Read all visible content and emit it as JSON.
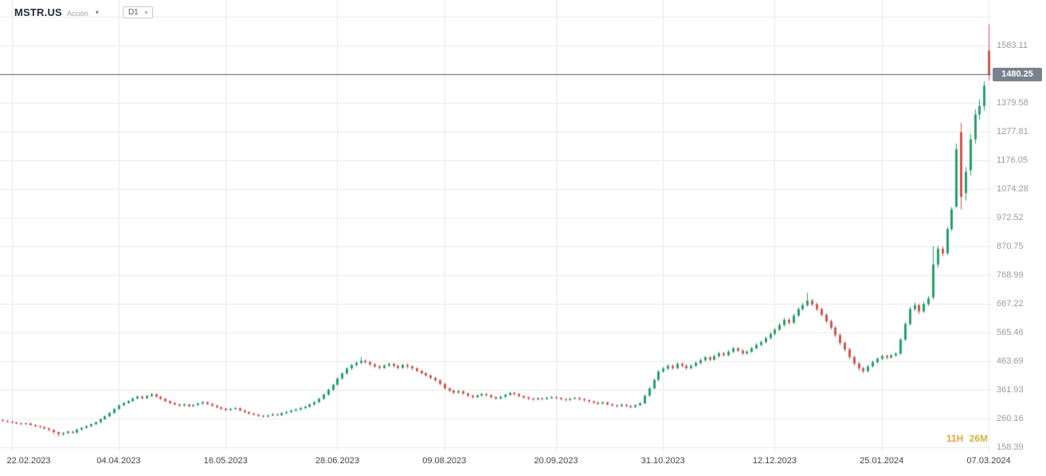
{
  "header": {
    "symbol": "MSTR.US",
    "instrument_type": "Acción",
    "timeframe": "D1"
  },
  "current_price": {
    "value": 1480.25,
    "label": "1480.25"
  },
  "countdown": {
    "hours": "11H",
    "minutes": "26M"
  },
  "colors": {
    "up": "#26a06a",
    "down": "#d5544e",
    "grid": "#e9e9e9",
    "price_line": "#565b61",
    "badge_bg": "#78828c",
    "badge_text": "#ffffff",
    "countdown_hours": "#f0a13b",
    "countdown_minutes": "#cdb83f",
    "price_label": "#9b9b9b",
    "date_label": "#3f4348"
  },
  "chart_data": {
    "type": "candlestick",
    "title": "MSTR.US daily candlestick chart",
    "symbol": "MSTR.US",
    "timeframe": "D1",
    "ylim": [
      144,
      1744
    ],
    "grid": true,
    "price_ticks": [
      {
        "price": 1684.88,
        "label": ""
      },
      {
        "price": 1583.11,
        "label": "1583.11"
      },
      {
        "price": 1481.34,
        "label": ""
      },
      {
        "price": 1379.58,
        "label": "1379.58"
      },
      {
        "price": 1277.81,
        "label": "1277.81"
      },
      {
        "price": 1176.05,
        "label": "1176.05"
      },
      {
        "price": 1074.28,
        "label": "1074.28"
      },
      {
        "price": 972.52,
        "label": "972.52"
      },
      {
        "price": 870.75,
        "label": "870.75"
      },
      {
        "price": 768.99,
        "label": "768.99"
      },
      {
        "price": 667.22,
        "label": "667.22"
      },
      {
        "price": 565.46,
        "label": "565.46"
      },
      {
        "price": 463.69,
        "label": "463.69"
      },
      {
        "price": 361.93,
        "label": "361.93"
      },
      {
        "price": 260.16,
        "label": "260.16"
      },
      {
        "price": 158.39,
        "label": "158.39"
      }
    ],
    "date_ticks": [
      {
        "idx": 2,
        "label": "22.02.2023"
      },
      {
        "idx": 25,
        "label": "04.04.2023"
      },
      {
        "idx": 48,
        "label": "16.05.2023"
      },
      {
        "idx": 72,
        "label": "28.06.2023"
      },
      {
        "idx": 95,
        "label": "09.08.2023"
      },
      {
        "idx": 119,
        "label": "20.09.2023"
      },
      {
        "idx": 142,
        "label": "31.10.2023"
      },
      {
        "idx": 166,
        "label": "12.12.2023"
      },
      {
        "idx": 189,
        "label": "25.01.2024"
      },
      {
        "idx": 212,
        "label": "07.03.2024"
      }
    ],
    "candles": [
      [
        255,
        257,
        249,
        252
      ],
      [
        252,
        255,
        246,
        249
      ],
      [
        249,
        252,
        242,
        246
      ],
      [
        246,
        249,
        240,
        243
      ],
      [
        243,
        247,
        237,
        240
      ],
      [
        240,
        246,
        238,
        243
      ],
      [
        243,
        245,
        234,
        237
      ],
      [
        237,
        240,
        230,
        233
      ],
      [
        233,
        236,
        226,
        230
      ],
      [
        230,
        233,
        221,
        225
      ],
      [
        225,
        228,
        215,
        220
      ],
      [
        220,
        222,
        207,
        212
      ],
      [
        212,
        214,
        196,
        205
      ],
      [
        205,
        212,
        199,
        209
      ],
      [
        209,
        217,
        205,
        214
      ],
      [
        214,
        216,
        206,
        210
      ],
      [
        210,
        224,
        208,
        221
      ],
      [
        221,
        230,
        218,
        227
      ],
      [
        227,
        236,
        224,
        233
      ],
      [
        233,
        243,
        230,
        240
      ],
      [
        240,
        250,
        237,
        247
      ],
      [
        247,
        261,
        244,
        258
      ],
      [
        258,
        271,
        255,
        268
      ],
      [
        268,
        283,
        265,
        280
      ],
      [
        280,
        297,
        277,
        294
      ],
      [
        294,
        310,
        291,
        307
      ],
      [
        307,
        319,
        304,
        315
      ],
      [
        315,
        326,
        312,
        322
      ],
      [
        322,
        335,
        319,
        331
      ],
      [
        331,
        342,
        328,
        338
      ],
      [
        338,
        341,
        328,
        332
      ],
      [
        332,
        344,
        329,
        340
      ],
      [
        340,
        351,
        337,
        346
      ],
      [
        346,
        349,
        334,
        338
      ],
      [
        338,
        341,
        326,
        330
      ],
      [
        330,
        333,
        318,
        322
      ],
      [
        322,
        325,
        311,
        315
      ],
      [
        315,
        318,
        306,
        310
      ],
      [
        310,
        313,
        302,
        306
      ],
      [
        306,
        314,
        303,
        310
      ],
      [
        310,
        312,
        300,
        304
      ],
      [
        304,
        312,
        301,
        308
      ],
      [
        308,
        317,
        305,
        313
      ],
      [
        313,
        322,
        310,
        318
      ],
      [
        318,
        321,
        308,
        312
      ],
      [
        312,
        315,
        302,
        306
      ],
      [
        306,
        309,
        296,
        300
      ],
      [
        300,
        303,
        291,
        295
      ],
      [
        295,
        298,
        286,
        290
      ],
      [
        290,
        298,
        287,
        294
      ],
      [
        294,
        301,
        291,
        297
      ],
      [
        297,
        300,
        285,
        289
      ],
      [
        289,
        292,
        279,
        283
      ],
      [
        283,
        286,
        274,
        278
      ],
      [
        278,
        281,
        270,
        274
      ],
      [
        274,
        277,
        266,
        270
      ],
      [
        270,
        273,
        263,
        267
      ],
      [
        267,
        275,
        264,
        271
      ],
      [
        271,
        279,
        268,
        275
      ],
      [
        275,
        278,
        268,
        272
      ],
      [
        272,
        283,
        269,
        279
      ],
      [
        279,
        287,
        276,
        283
      ],
      [
        283,
        292,
        280,
        288
      ],
      [
        288,
        296,
        285,
        292
      ],
      [
        292,
        301,
        289,
        297
      ],
      [
        297,
        306,
        294,
        302
      ],
      [
        302,
        314,
        298,
        310
      ],
      [
        310,
        322,
        306,
        318
      ],
      [
        318,
        334,
        315,
        330
      ],
      [
        330,
        349,
        327,
        345
      ],
      [
        345,
        366,
        341,
        362
      ],
      [
        362,
        384,
        358,
        380
      ],
      [
        380,
        406,
        376,
        402
      ],
      [
        402,
        424,
        397,
        420
      ],
      [
        420,
        442,
        415,
        438
      ],
      [
        438,
        454,
        432,
        450
      ],
      [
        450,
        463,
        444,
        458
      ],
      [
        458,
        478,
        452,
        465
      ],
      [
        465,
        470,
        454,
        460
      ],
      [
        460,
        465,
        446,
        452
      ],
      [
        452,
        457,
        439,
        445
      ],
      [
        445,
        450,
        434,
        440
      ],
      [
        440,
        452,
        436,
        448
      ],
      [
        448,
        459,
        443,
        454
      ],
      [
        454,
        458,
        441,
        447
      ],
      [
        447,
        451,
        434,
        440
      ],
      [
        440,
        454,
        436,
        450
      ],
      [
        450,
        455,
        438,
        445
      ],
      [
        445,
        449,
        431,
        438
      ],
      [
        438,
        442,
        424,
        429
      ],
      [
        429,
        433,
        416,
        421
      ],
      [
        421,
        425,
        408,
        413
      ],
      [
        413,
        417,
        399,
        404
      ],
      [
        404,
        408,
        390,
        396
      ],
      [
        396,
        399,
        378,
        383
      ],
      [
        383,
        386,
        362,
        367
      ],
      [
        367,
        371,
        354,
        359
      ],
      [
        359,
        363,
        347,
        352
      ],
      [
        352,
        362,
        349,
        357
      ],
      [
        357,
        360,
        344,
        349
      ],
      [
        349,
        352,
        336,
        341
      ],
      [
        341,
        345,
        331,
        336
      ],
      [
        336,
        346,
        333,
        342
      ],
      [
        342,
        351,
        338,
        347
      ],
      [
        347,
        350,
        338,
        343
      ],
      [
        343,
        346,
        331,
        336
      ],
      [
        336,
        339,
        326,
        331
      ],
      [
        331,
        341,
        328,
        337
      ],
      [
        337,
        348,
        334,
        344
      ],
      [
        344,
        355,
        341,
        351
      ],
      [
        351,
        354,
        342,
        347
      ],
      [
        347,
        350,
        335,
        340
      ],
      [
        340,
        343,
        330,
        335
      ],
      [
        335,
        338,
        326,
        331
      ],
      [
        331,
        334,
        323,
        328
      ],
      [
        328,
        336,
        325,
        332
      ],
      [
        332,
        335,
        324,
        329
      ],
      [
        329,
        337,
        326,
        333
      ],
      [
        333,
        340,
        330,
        336
      ],
      [
        336,
        339,
        328,
        333
      ],
      [
        333,
        336,
        324,
        329
      ],
      [
        329,
        332,
        321,
        326
      ],
      [
        326,
        334,
        323,
        330
      ],
      [
        330,
        337,
        327,
        333
      ],
      [
        333,
        336,
        324,
        329
      ],
      [
        329,
        332,
        320,
        325
      ],
      [
        325,
        328,
        316,
        321
      ],
      [
        321,
        324,
        312,
        317
      ],
      [
        317,
        320,
        308,
        313
      ],
      [
        313,
        321,
        310,
        317
      ],
      [
        317,
        320,
        306,
        311
      ],
      [
        311,
        314,
        302,
        307
      ],
      [
        307,
        310,
        299,
        304
      ],
      [
        304,
        313,
        301,
        309
      ],
      [
        309,
        312,
        300,
        305
      ],
      [
        305,
        308,
        296,
        301
      ],
      [
        301,
        311,
        298,
        307
      ],
      [
        307,
        318,
        304,
        314
      ],
      [
        314,
        345,
        311,
        341
      ],
      [
        341,
        371,
        338,
        367
      ],
      [
        367,
        402,
        363,
        397
      ],
      [
        397,
        432,
        393,
        427
      ],
      [
        427,
        443,
        422,
        437
      ],
      [
        437,
        453,
        432,
        447
      ],
      [
        447,
        452,
        433,
        439
      ],
      [
        439,
        460,
        435,
        454
      ],
      [
        454,
        459,
        441,
        447
      ],
      [
        447,
        452,
        433,
        439
      ],
      [
        439,
        453,
        435,
        447
      ],
      [
        447,
        463,
        443,
        457
      ],
      [
        457,
        473,
        452,
        467
      ],
      [
        467,
        483,
        462,
        477
      ],
      [
        477,
        482,
        463,
        469
      ],
      [
        469,
        487,
        465,
        481
      ],
      [
        481,
        497,
        476,
        491
      ],
      [
        491,
        496,
        479,
        485
      ],
      [
        485,
        503,
        481,
        497
      ],
      [
        497,
        515,
        492,
        509
      ],
      [
        509,
        514,
        495,
        501
      ],
      [
        501,
        506,
        485,
        491
      ],
      [
        491,
        503,
        486,
        497
      ],
      [
        497,
        515,
        493,
        509
      ],
      [
        509,
        527,
        505,
        521
      ],
      [
        521,
        537,
        516,
        531
      ],
      [
        531,
        551,
        526,
        545
      ],
      [
        545,
        566,
        540,
        560
      ],
      [
        560,
        582,
        555,
        575
      ],
      [
        575,
        599,
        570,
        592
      ],
      [
        592,
        617,
        586,
        610
      ],
      [
        610,
        616,
        593,
        600
      ],
      [
        600,
        632,
        595,
        625
      ],
      [
        625,
        655,
        620,
        648
      ],
      [
        648,
        670,
        642,
        662
      ],
      [
        662,
        706,
        657,
        678
      ],
      [
        678,
        684,
        658,
        665
      ],
      [
        665,
        671,
        641,
        648
      ],
      [
        648,
        654,
        621,
        628
      ],
      [
        628,
        634,
        598,
        605
      ],
      [
        605,
        611,
        575,
        582
      ],
      [
        582,
        588,
        549,
        556
      ],
      [
        556,
        562,
        521,
        528
      ],
      [
        528,
        534,
        498,
        505
      ],
      [
        505,
        511,
        470,
        478
      ],
      [
        478,
        484,
        447,
        455
      ],
      [
        455,
        461,
        430,
        438
      ],
      [
        438,
        444,
        421,
        428
      ],
      [
        428,
        451,
        424,
        445
      ],
      [
        445,
        466,
        441,
        460
      ],
      [
        460,
        478,
        455,
        472
      ],
      [
        472,
        488,
        467,
        482
      ],
      [
        482,
        487,
        470,
        476
      ],
      [
        476,
        490,
        472,
        484
      ],
      [
        484,
        496,
        479,
        490
      ],
      [
        490,
        546,
        486,
        540
      ],
      [
        540,
        602,
        535,
        595
      ],
      [
        595,
        656,
        590,
        648
      ],
      [
        648,
        672,
        641,
        662
      ],
      [
        662,
        668,
        630,
        640
      ],
      [
        640,
        674,
        634,
        666
      ],
      [
        666,
        695,
        659,
        686
      ],
      [
        690,
        872,
        682,
        806
      ],
      [
        806,
        874,
        795,
        862
      ],
      [
        862,
        871,
        835,
        846
      ],
      [
        846,
        940,
        840,
        932
      ],
      [
        932,
        1010,
        925,
        1002
      ],
      [
        1012,
        1235,
        1005,
        1215
      ],
      [
        1275,
        1308,
        1002,
        1046
      ],
      [
        1060,
        1152,
        1032,
        1135
      ],
      [
        1140,
        1268,
        1122,
        1250
      ],
      [
        1250,
        1356,
        1235,
        1338
      ],
      [
        1338,
        1392,
        1320,
        1368
      ],
      [
        1368,
        1455,
        1352,
        1440
      ],
      [
        1565,
        1658,
        1458,
        1480.25
      ]
    ]
  }
}
